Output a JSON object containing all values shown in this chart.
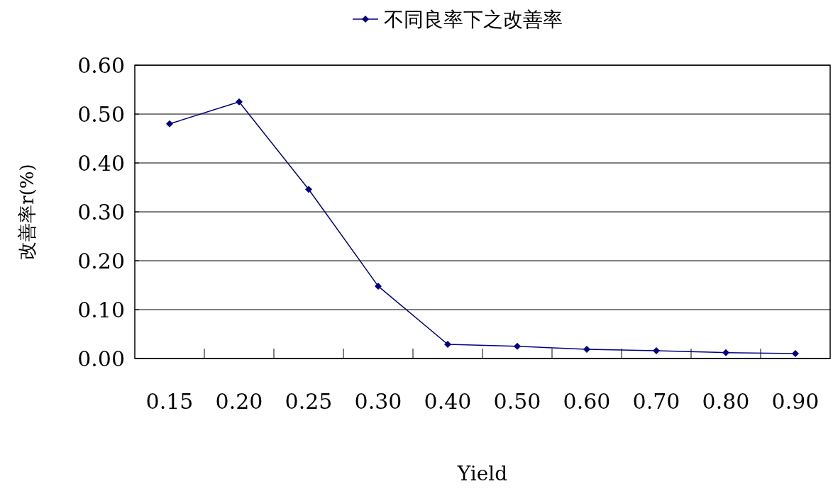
{
  "chart_data": {
    "type": "line",
    "xlabel": "Yield",
    "ylabel": "改善率r(%)",
    "categories": [
      "0.15",
      "0.20",
      "0.25",
      "0.30",
      "0.40",
      "0.50",
      "0.60",
      "0.70",
      "0.80",
      "0.90"
    ],
    "series": [
      {
        "name": "不同良率下之改善率",
        "color": "#000080",
        "values": [
          0.48,
          0.525,
          0.346,
          0.148,
          0.029,
          0.025,
          0.019,
          0.016,
          0.012,
          0.01
        ]
      }
    ],
    "ylim": [
      0,
      0.6
    ],
    "yticks": [
      {
        "value": 0,
        "label": "0.00"
      },
      {
        "value": 0.1,
        "label": "0.10"
      },
      {
        "value": 0.2,
        "label": "0.20"
      },
      {
        "value": 0.3,
        "label": "0.30"
      },
      {
        "value": 0.4,
        "label": "0.40"
      },
      {
        "value": 0.5,
        "label": "0.50"
      },
      {
        "value": 0.6,
        "label": "0.60"
      }
    ],
    "grid": "y",
    "legend": "top",
    "marker": "diamond",
    "line_style": "solid"
  }
}
